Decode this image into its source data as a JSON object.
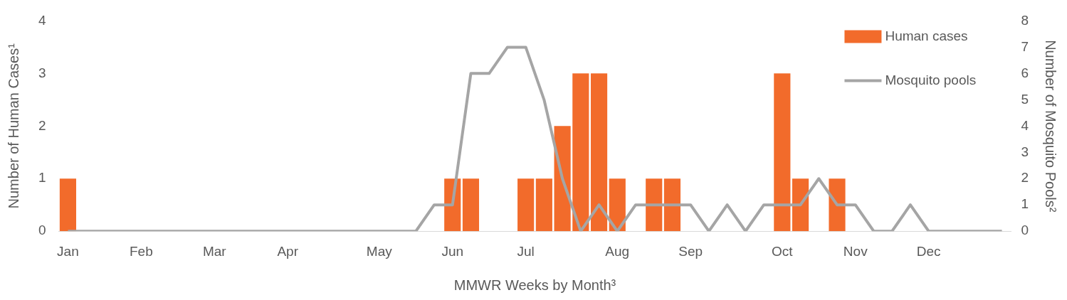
{
  "chart_data": {
    "type": "bar",
    "xlabel": "MMWR Weeks by Month³",
    "ylabel": "Number of Human Cases¹",
    "y2label": "Number of Mosquito Pools²",
    "categories": [
      "Jan",
      null,
      null,
      null,
      "Feb",
      null,
      null,
      null,
      "Mar",
      null,
      null,
      null,
      "Apr",
      null,
      null,
      null,
      null,
      "May",
      null,
      null,
      null,
      "Jun",
      null,
      null,
      null,
      "Jul",
      null,
      null,
      null,
      null,
      "Aug",
      null,
      null,
      null,
      "Sep",
      null,
      null,
      null,
      null,
      "Oct",
      null,
      null,
      null,
      "Nov",
      null,
      null,
      null,
      "Dec",
      null,
      null,
      null,
      null
    ],
    "series": [
      {
        "name": "Human cases",
        "color": "#f26b2b",
        "values": [
          1,
          0,
          0,
          0,
          0,
          0,
          0,
          0,
          0,
          0,
          0,
          0,
          0,
          0,
          0,
          0,
          0,
          0,
          0,
          0,
          0,
          1,
          1,
          0,
          0,
          1,
          1,
          2,
          3,
          3,
          1,
          0,
          1,
          1,
          0,
          0,
          0,
          0,
          0,
          3,
          1,
          0,
          1,
          0,
          0,
          0,
          0,
          0,
          0,
          0,
          0,
          0
        ]
      },
      {
        "name": "Mosquito pools",
        "type": "line",
        "axis": "y2",
        "color": "#a5a5a5",
        "values": [
          0,
          0,
          0,
          0,
          0,
          0,
          0,
          0,
          0,
          0,
          0,
          0,
          0,
          0,
          0,
          0,
          0,
          0,
          0,
          0,
          1,
          1,
          6,
          6,
          7,
          7,
          5,
          2,
          0,
          1,
          0,
          1,
          1,
          1,
          1,
          0,
          1,
          0,
          1,
          1,
          1,
          2,
          1,
          1,
          0,
          0,
          1,
          0,
          0,
          0,
          0,
          0
        ]
      }
    ],
    "ylim": [
      0,
      4
    ],
    "yticks": [
      0,
      1,
      2,
      3,
      4
    ],
    "y2lim": [
      0,
      8
    ],
    "y2ticks": [
      0,
      1,
      2,
      3,
      4,
      5,
      6,
      7,
      8
    ],
    "grid": false,
    "legend": "top right",
    "marker": "none",
    "line_style": "solid"
  }
}
